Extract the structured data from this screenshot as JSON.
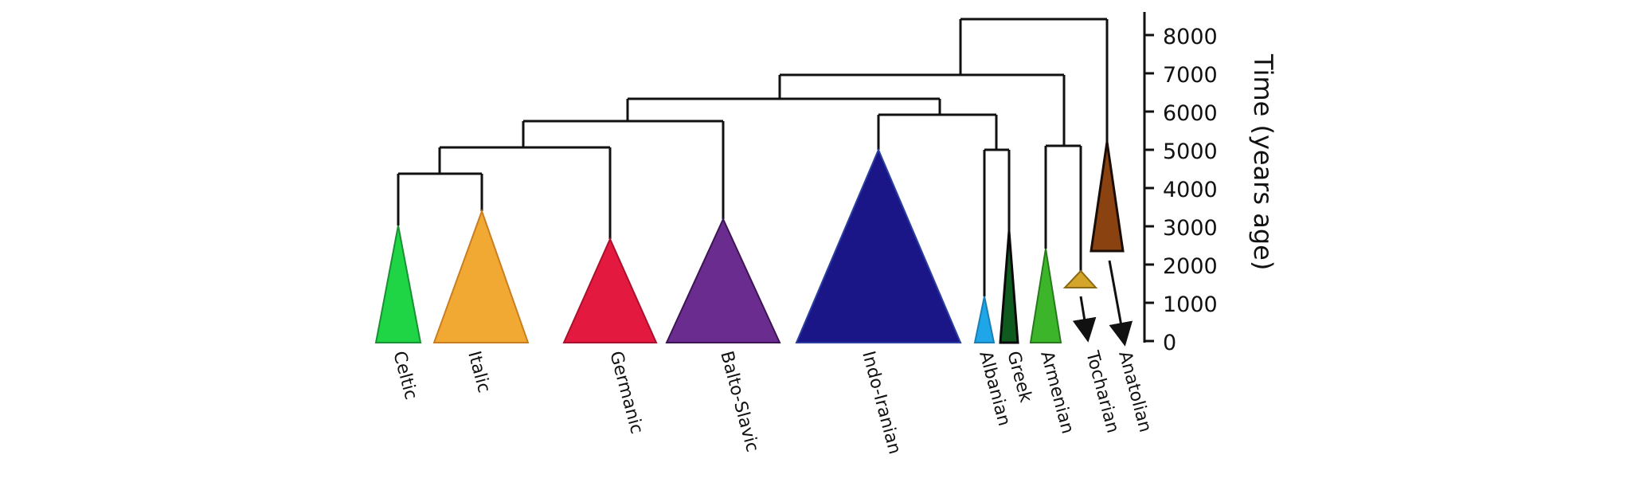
{
  "axis": {
    "title": "Time (years age)",
    "ticks": [
      "8000",
      "7000",
      "6000",
      "5000",
      "4000",
      "3000",
      "2000",
      "1000",
      "0"
    ]
  },
  "clades": [
    {
      "name": "Celtic",
      "color": "#1fd445"
    },
    {
      "name": "Italic",
      "color": "#f2a934"
    },
    {
      "name": "Germanic",
      "color": "#e3193f"
    },
    {
      "name": "Balto-Slavic",
      "color": "#6a2c8f"
    },
    {
      "name": "Indo-Iranian",
      "color": "#1a1688"
    },
    {
      "name": "Albanian",
      "color": "#1fa6e8"
    },
    {
      "name": "Greek",
      "color": "#0f5a1e"
    },
    {
      "name": "Armenian",
      "color": "#3cb52a"
    },
    {
      "name": "Tocharian",
      "color": "#d4a52b"
    },
    {
      "name": "Anatolian",
      "color": "#8a4210"
    }
  ]
}
